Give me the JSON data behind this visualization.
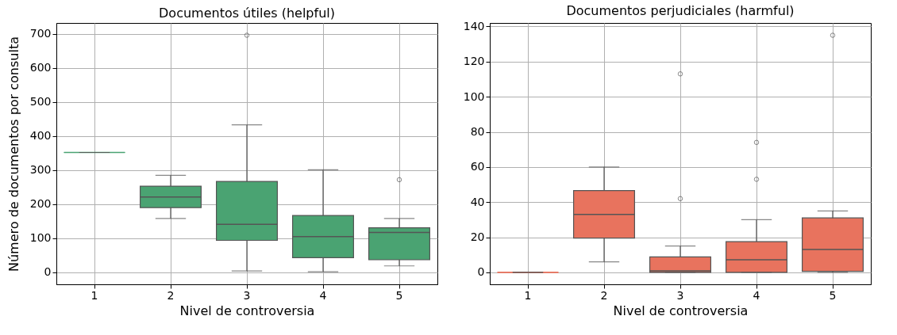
{
  "chart_data": [
    {
      "type": "box",
      "title": "Documentos útiles (helpful)",
      "xlabel": "Nivel de controversia",
      "ylabel": "Número de documentos por consulta",
      "categories": [
        "1",
        "2",
        "3",
        "4",
        "5"
      ],
      "ylim": [
        -35,
        732
      ],
      "yticks": [
        0,
        100,
        200,
        300,
        400,
        500,
        600,
        700
      ],
      "grid": true,
      "series": [
        {
          "color": "#4aa372",
          "boxes": [
            {
              "low": 352,
              "q1": 352,
              "median": 352,
              "q3": 352,
              "high": 352
            },
            {
              "low": 158,
              "q1": 190,
              "median": 221,
              "q3": 253,
              "high": 285
            },
            {
              "low": 4,
              "q1": 94,
              "median": 141,
              "q3": 267,
              "high": 433,
              "outliers": [
                696
              ]
            },
            {
              "low": 2,
              "q1": 43,
              "median": 105,
              "q3": 167,
              "high": 301
            },
            {
              "low": 19,
              "q1": 37,
              "median": 117,
              "q3": 131,
              "high": 158,
              "outliers": [
                272
              ]
            }
          ]
        }
      ]
    },
    {
      "type": "box",
      "title": "Documentos perjudiciales (harmful)",
      "xlabel": "Nivel de controversia",
      "categories": [
        "1",
        "2",
        "3",
        "4",
        "5"
      ],
      "ylim": [
        -6.8,
        142
      ],
      "yticks": [
        0,
        20,
        40,
        60,
        80,
        100,
        120,
        140
      ],
      "grid": true,
      "series": [
        {
          "color": "#e8735e",
          "boxes": [
            {
              "low": 0,
              "q1": 0,
              "median": 0,
              "q3": 0,
              "high": 0
            },
            {
              "low": 6,
              "q1": 19.5,
              "median": 33,
              "q3": 46.6,
              "high": 60
            },
            {
              "low": 0,
              "q1": 0,
              "median": 0.9,
              "q3": 8.8,
              "high": 15,
              "outliers": [
                42,
                113
              ]
            },
            {
              "low": 0,
              "q1": 0,
              "median": 7.2,
              "q3": 17.5,
              "high": 30,
              "outliers": [
                53,
                74
              ]
            },
            {
              "low": 0,
              "q1": 0.6,
              "median": 13,
              "q3": 31,
              "high": 35,
              "outliers": [
                135
              ]
            }
          ]
        }
      ]
    }
  ]
}
